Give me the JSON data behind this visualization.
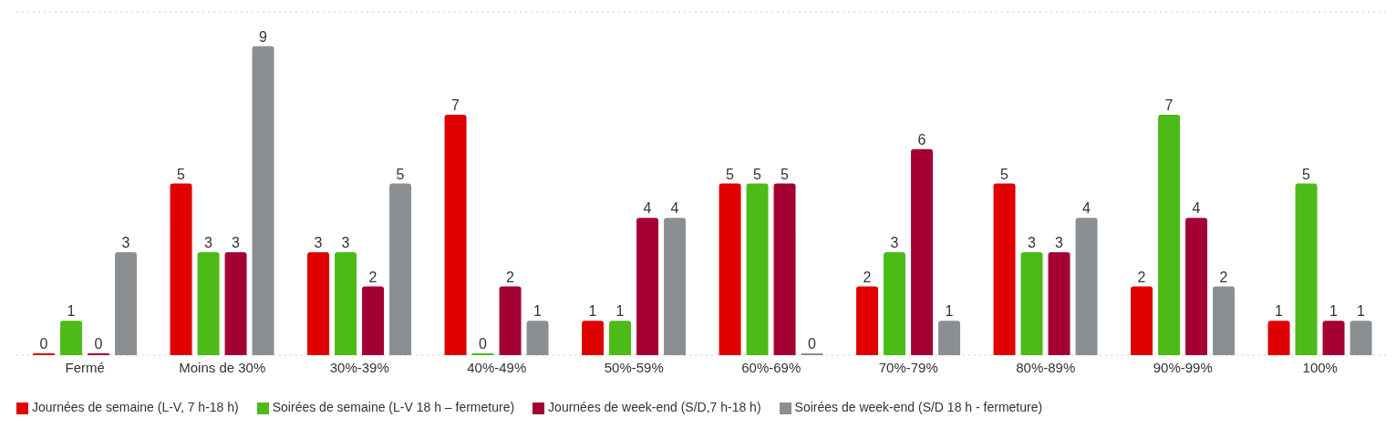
{
  "chart_data": {
    "type": "bar",
    "categories": [
      "Fermé",
      "Moins de 30%",
      "30%-39%",
      "40%-49%",
      "50%-59%",
      "60%-69%",
      "70%-79%",
      "80%-89%",
      "90%-99%",
      "100%"
    ],
    "series": [
      {
        "name": "Journées de semaine (L-V, 7 h-18 h)",
        "color": "#e00000",
        "values": [
          0,
          5,
          3,
          7,
          1,
          5,
          2,
          5,
          2,
          1
        ]
      },
      {
        "name": "Soirées de semaine (L-V 18 h – fermeture)",
        "color": "#4cbb17",
        "values": [
          1,
          3,
          3,
          0,
          1,
          5,
          3,
          3,
          7,
          5
        ]
      },
      {
        "name": "Journées de week-end (S/D,7 h-18 h)",
        "color": "#a50034",
        "values": [
          0,
          3,
          2,
          2,
          4,
          5,
          6,
          3,
          4,
          1
        ]
      },
      {
        "name": "Soirées de week-end (S/D 18 h - fermeture)",
        "color": "#8c8f91",
        "values": [
          3,
          9,
          5,
          1,
          4,
          0,
          1,
          4,
          2,
          1
        ]
      }
    ],
    "ylim": [
      0,
      10
    ],
    "grid": "y",
    "tick_labels": "x",
    "data_labels": true,
    "legend": "bottom"
  }
}
